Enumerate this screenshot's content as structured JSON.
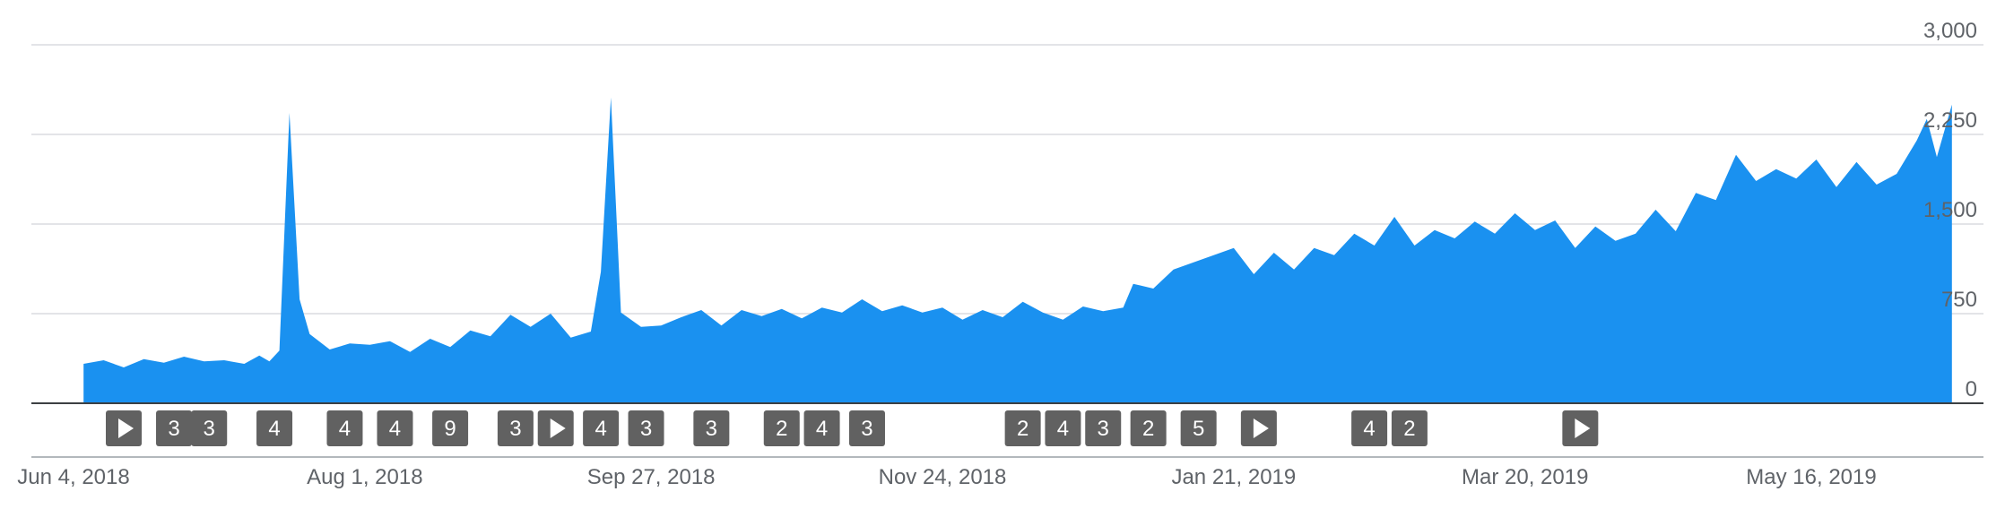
{
  "chart_data": {
    "type": "area",
    "ylim": [
      0,
      3000
    ],
    "yticks": [
      "0",
      "750",
      "1,500",
      "2,250",
      "3,000"
    ],
    "ytick_values": [
      0,
      750,
      1500,
      2250,
      3000
    ],
    "xrange": [
      "2018-06-04",
      "2019-06-20"
    ],
    "xtick_labels": [
      "Jun 4, 2018",
      "Aug 1, 2018",
      "Sep 27, 2018",
      "Nov 24, 2018",
      "Jan 21, 2019",
      "Mar 20, 2019",
      "May 16, 2019"
    ],
    "xtick_dates": [
      "2018-06-04",
      "2018-08-01",
      "2018-09-27",
      "2018-11-24",
      "2019-01-21",
      "2019-03-20",
      "2019-05-16"
    ],
    "grid": true,
    "colors": {
      "area": "#1a91f0",
      "grid": "#dadce0",
      "axis": "#5f6368",
      "marker": "#616161"
    },
    "series": [
      {
        "values": [
          [
            "2018-06-06",
            330
          ],
          [
            "2018-06-10",
            360
          ],
          [
            "2018-06-14",
            300
          ],
          [
            "2018-06-18",
            370
          ],
          [
            "2018-06-22",
            340
          ],
          [
            "2018-06-26",
            390
          ],
          [
            "2018-06-30",
            350
          ],
          [
            "2018-07-04",
            360
          ],
          [
            "2018-07-08",
            330
          ],
          [
            "2018-07-11",
            400
          ],
          [
            "2018-07-13",
            350
          ],
          [
            "2018-07-15",
            440
          ],
          [
            "2018-07-17",
            2430
          ],
          [
            "2018-07-19",
            870
          ],
          [
            "2018-07-21",
            580
          ],
          [
            "2018-07-25",
            450
          ],
          [
            "2018-07-29",
            500
          ],
          [
            "2018-08-02",
            490
          ],
          [
            "2018-08-06",
            520
          ],
          [
            "2018-08-10",
            430
          ],
          [
            "2018-08-14",
            540
          ],
          [
            "2018-08-18",
            470
          ],
          [
            "2018-08-22",
            610
          ],
          [
            "2018-08-26",
            560
          ],
          [
            "2018-08-30",
            740
          ],
          [
            "2018-09-03",
            640
          ],
          [
            "2018-09-07",
            750
          ],
          [
            "2018-09-11",
            550
          ],
          [
            "2018-09-15",
            600
          ],
          [
            "2018-09-17",
            1100
          ],
          [
            "2018-09-19",
            2560
          ],
          [
            "2018-09-21",
            760
          ],
          [
            "2018-09-25",
            640
          ],
          [
            "2018-09-29",
            650
          ],
          [
            "2018-10-03",
            720
          ],
          [
            "2018-10-07",
            780
          ],
          [
            "2018-10-11",
            650
          ],
          [
            "2018-10-15",
            780
          ],
          [
            "2018-10-19",
            730
          ],
          [
            "2018-10-23",
            790
          ],
          [
            "2018-10-27",
            710
          ],
          [
            "2018-10-31",
            800
          ],
          [
            "2018-11-04",
            760
          ],
          [
            "2018-11-08",
            870
          ],
          [
            "2018-11-12",
            770
          ],
          [
            "2018-11-16",
            820
          ],
          [
            "2018-11-20",
            760
          ],
          [
            "2018-11-24",
            800
          ],
          [
            "2018-11-28",
            700
          ],
          [
            "2018-12-02",
            780
          ],
          [
            "2018-12-06",
            720
          ],
          [
            "2018-12-10",
            850
          ],
          [
            "2018-12-14",
            760
          ],
          [
            "2018-12-18",
            700
          ],
          [
            "2018-12-22",
            810
          ],
          [
            "2018-12-26",
            770
          ],
          [
            "2018-12-30",
            800
          ],
          [
            "2019-01-01",
            1000
          ],
          [
            "2019-01-05",
            960
          ],
          [
            "2019-01-09",
            1120
          ],
          [
            "2019-01-13",
            1180
          ],
          [
            "2019-01-17",
            1240
          ],
          [
            "2019-01-21",
            1300
          ],
          [
            "2019-01-25",
            1080
          ],
          [
            "2019-01-29",
            1260
          ],
          [
            "2019-02-02",
            1120
          ],
          [
            "2019-02-06",
            1300
          ],
          [
            "2019-02-10",
            1240
          ],
          [
            "2019-02-14",
            1420
          ],
          [
            "2019-02-18",
            1320
          ],
          [
            "2019-02-22",
            1560
          ],
          [
            "2019-02-26",
            1320
          ],
          [
            "2019-03-02",
            1450
          ],
          [
            "2019-03-06",
            1380
          ],
          [
            "2019-03-10",
            1520
          ],
          [
            "2019-03-14",
            1420
          ],
          [
            "2019-03-18",
            1590
          ],
          [
            "2019-03-22",
            1450
          ],
          [
            "2019-03-26",
            1530
          ],
          [
            "2019-03-30",
            1300
          ],
          [
            "2019-04-03",
            1480
          ],
          [
            "2019-04-07",
            1360
          ],
          [
            "2019-04-11",
            1420
          ],
          [
            "2019-04-15",
            1620
          ],
          [
            "2019-04-19",
            1440
          ],
          [
            "2019-04-23",
            1760
          ],
          [
            "2019-04-27",
            1700
          ],
          [
            "2019-05-01",
            2080
          ],
          [
            "2019-05-05",
            1860
          ],
          [
            "2019-05-09",
            1960
          ],
          [
            "2019-05-13",
            1880
          ],
          [
            "2019-05-17",
            2040
          ],
          [
            "2019-05-21",
            1810
          ],
          [
            "2019-05-25",
            2020
          ],
          [
            "2019-05-29",
            1830
          ],
          [
            "2019-06-02",
            1920
          ],
          [
            "2019-06-06",
            2200
          ],
          [
            "2019-06-08",
            2380
          ],
          [
            "2019-06-10",
            2060
          ],
          [
            "2019-06-13",
            2500
          ]
        ]
      }
    ],
    "annotations": [
      {
        "date": "2018-06-14",
        "label": "▶",
        "kind": "play"
      },
      {
        "date": "2018-06-24",
        "label": "3",
        "kind": "count"
      },
      {
        "date": "2018-07-01",
        "label": "3",
        "kind": "count"
      },
      {
        "date": "2018-07-14",
        "label": "4",
        "kind": "count"
      },
      {
        "date": "2018-07-28",
        "label": "4",
        "kind": "count"
      },
      {
        "date": "2018-08-07",
        "label": "4",
        "kind": "count"
      },
      {
        "date": "2018-08-18",
        "label": "9",
        "kind": "count"
      },
      {
        "date": "2018-08-31",
        "label": "3",
        "kind": "count"
      },
      {
        "date": "2018-09-08",
        "label": "▶",
        "kind": "play"
      },
      {
        "date": "2018-09-17",
        "label": "4",
        "kind": "count"
      },
      {
        "date": "2018-09-26",
        "label": "3",
        "kind": "count"
      },
      {
        "date": "2018-10-09",
        "label": "3",
        "kind": "count"
      },
      {
        "date": "2018-10-23",
        "label": "2",
        "kind": "count"
      },
      {
        "date": "2018-10-31",
        "label": "4",
        "kind": "count"
      },
      {
        "date": "2018-11-09",
        "label": "3",
        "kind": "count"
      },
      {
        "date": "2018-12-10",
        "label": "2",
        "kind": "count"
      },
      {
        "date": "2018-12-18",
        "label": "4",
        "kind": "count"
      },
      {
        "date": "2018-12-26",
        "label": "3",
        "kind": "count"
      },
      {
        "date": "2019-01-04",
        "label": "2",
        "kind": "count"
      },
      {
        "date": "2019-01-14",
        "label": "5",
        "kind": "count"
      },
      {
        "date": "2019-01-26",
        "label": "▶",
        "kind": "play"
      },
      {
        "date": "2019-02-17",
        "label": "4",
        "kind": "count"
      },
      {
        "date": "2019-02-25",
        "label": "2",
        "kind": "count"
      },
      {
        "date": "2019-04-00",
        "label": "▶",
        "kind": "play"
      }
    ]
  }
}
